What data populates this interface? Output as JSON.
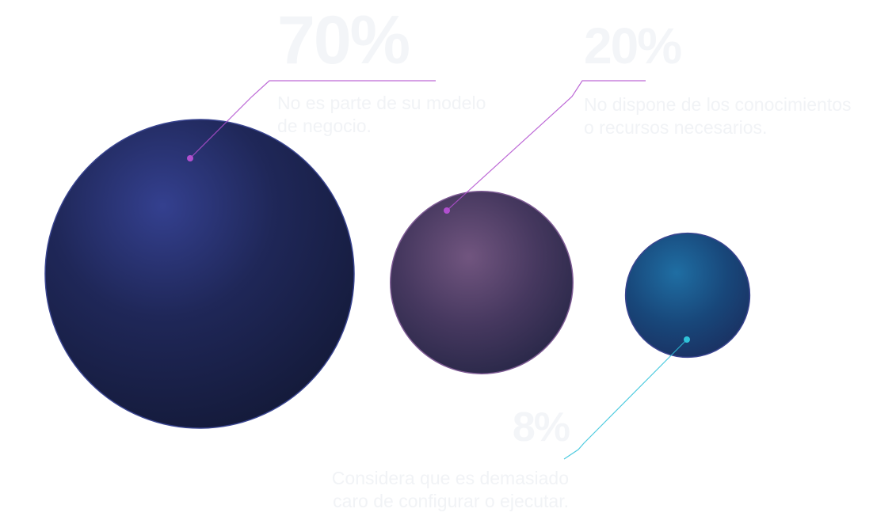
{
  "chart_data": {
    "type": "bubble",
    "title": "",
    "series": [
      {
        "value": 70,
        "label": "70%",
        "description": "No es parte de su modelo de negocio.",
        "desc_lines": [
          "No es parte de su modelo",
          "de negocio."
        ],
        "color": "#2a3176",
        "pointer_color": "#b14fcf"
      },
      {
        "value": 20,
        "label": "20%",
        "description": "No dispone de los conocimientos o recursos necesarios.",
        "desc_lines": [
          "No dispone de los conocimientos",
          "o recursos necesarios."
        ],
        "color": "#51406e",
        "pointer_color": "#b14fcf"
      },
      {
        "value": 8,
        "label": "8%",
        "description": "Considera que es demasiado caro de configurar o ejecutar.",
        "desc_lines": [
          "Considera que es demasiado",
          "caro de configurar o ejecutar."
        ],
        "color": "#1b4f87",
        "pointer_color": "#2fc2d9"
      }
    ]
  }
}
